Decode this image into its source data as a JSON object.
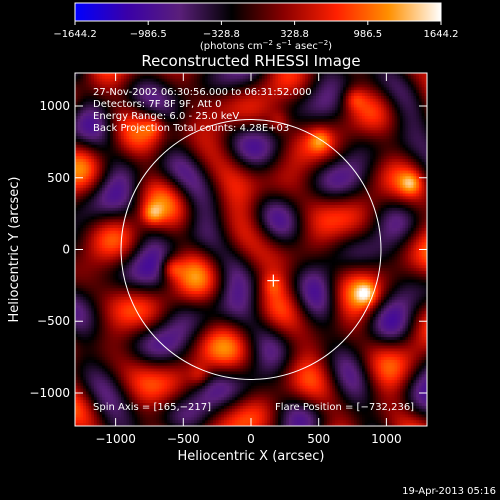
{
  "chart_data": {
    "type": "heatmap",
    "title": "Reconstructed RHESSI Image",
    "xlabel": "Heliocentric X (arcsec)",
    "ylabel": "Heliocentric Y (arcsec)",
    "xlim": [
      -1300,
      1300
    ],
    "ylim": [
      -1230,
      1230
    ],
    "x_ticks": [
      -1000,
      -500,
      0,
      500,
      1000
    ],
    "y_ticks": [
      -1000,
      -500,
      0,
      500,
      1000
    ],
    "x_tick_labels": [
      "−1000",
      "−500",
      "0",
      "500",
      "1000"
    ],
    "y_tick_labels": [
      "−1000",
      "−500",
      "0",
      "500",
      "1000"
    ],
    "colorbar": {
      "range": [
        -1644.2,
        1644.2
      ],
      "ticks": [
        -1644.2,
        -986.5,
        -328.8,
        328.8,
        986.5,
        1644.2
      ],
      "tick_labels": [
        "−1644.2",
        "−986.5",
        "−328.8",
        "328.8",
        "986.5",
        "1644.2"
      ],
      "units_prefix": "(photons cm",
      "units_exp1": "−2",
      "units_mid": " s",
      "units_exp2": "−1",
      "units_mid2": " asec",
      "units_exp3": "−2",
      "units_suffix": ")",
      "colormap": [
        "#0000ff",
        "#3a00a8",
        "#5a1f7a",
        "#000000",
        "#8b0000",
        "#ff2000",
        "#ff9000",
        "#ffffff"
      ]
    },
    "info_lines": [
      "27-Nov-2002 06:30:56.000 to 06:31:52.000",
      "Detectors: 7F 8F 9F, Att 0",
      "Energy Range: 6.0 - 25.0 keV",
      "Back Projection    Total counts: 4.28E+03"
    ],
    "footer_left": "Spin Axis = [165,−217]",
    "footer_right": "Flare Position = [−732,236]",
    "solar_disk": {
      "center": [
        0,
        0
      ],
      "radius": 960,
      "color": "#ffffff"
    },
    "marker_position": [
      165,
      -217
    ],
    "bright_sources": [
      {
        "x": -730,
        "y": 245,
        "intensity": 1644.2
      },
      {
        "x": -590,
        "y": -130,
        "intensity": 1400
      },
      {
        "x": 850,
        "y": -310,
        "intensity": 1450
      },
      {
        "x": 1180,
        "y": 460,
        "intensity": 1300
      },
      {
        "x": 510,
        "y": 760,
        "intensity": 1250
      },
      {
        "x": -720,
        "y": 860,
        "intensity": 1150
      },
      {
        "x": 160,
        "y": -240,
        "intensity": 1000
      },
      {
        "x": 760,
        "y": 1050,
        "intensity": 1100
      },
      {
        "x": -380,
        "y": -880,
        "intensity": 1050
      },
      {
        "x": 210,
        "y": 890,
        "intensity": 1050
      }
    ]
  },
  "timestamp": "19-Apr-2013 05:16"
}
